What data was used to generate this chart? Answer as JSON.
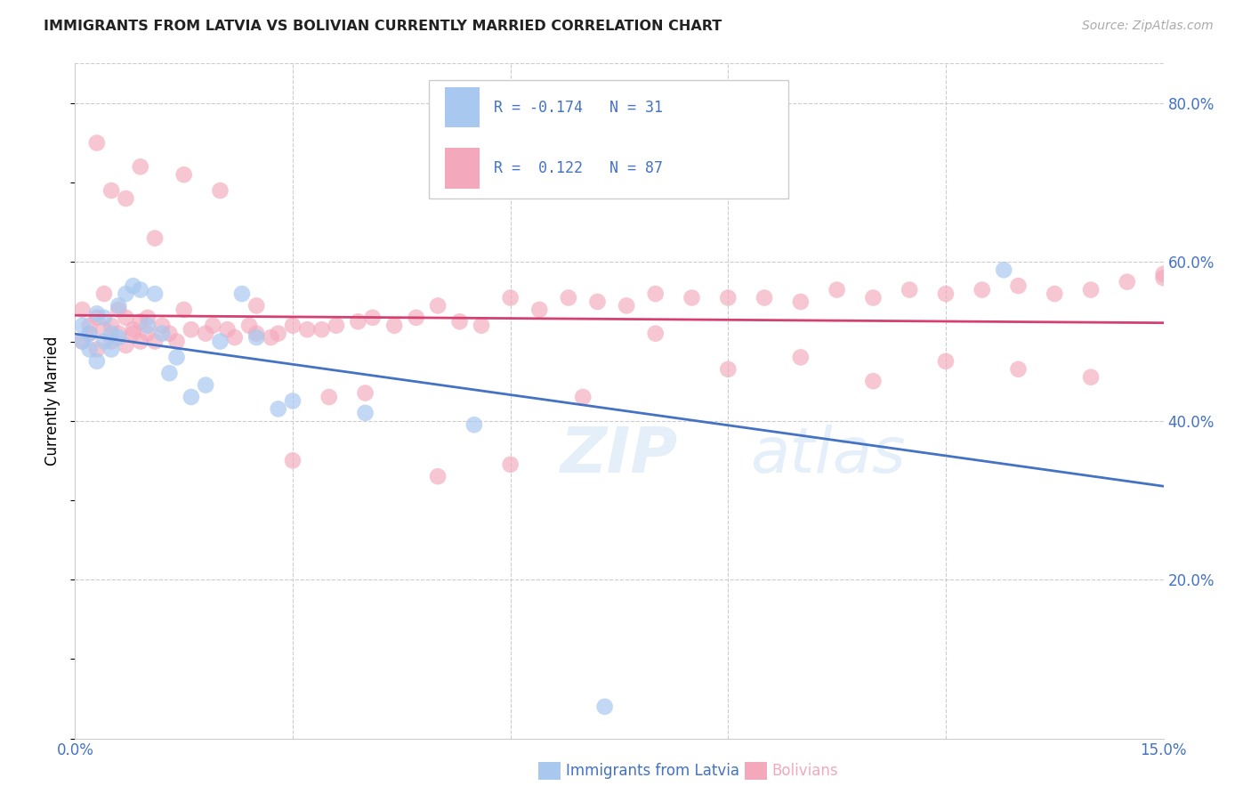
{
  "title": "IMMIGRANTS FROM LATVIA VS BOLIVIAN CURRENTLY MARRIED CORRELATION CHART",
  "source": "Source: ZipAtlas.com",
  "xlabel_latvian": "Immigrants from Latvia",
  "xlabel_bolivian": "Bolivians",
  "ylabel": "Currently Married",
  "xlim": [
    0.0,
    0.15
  ],
  "ylim": [
    0.0,
    0.85
  ],
  "yticks_right": [
    0.2,
    0.4,
    0.6,
    0.8
  ],
  "ytick_labels_right": [
    "20.0%",
    "40.0%",
    "60.0%",
    "80.0%"
  ],
  "legend_r_latvian": "-0.174",
  "legend_n_latvian": "31",
  "legend_r_bolivian": "0.122",
  "legend_n_bolivian": "87",
  "color_latvian": "#a8c8f0",
  "color_bolivian": "#f4a8bc",
  "color_line_latvian": "#4472c4",
  "color_line_bolivian": "#d44070",
  "color_axis_right": "#4472c4",
  "color_axis_bottom": "#4472c4",
  "color_bolivian_label": "#f4a8bc",
  "latvian_x": [
    0.001,
    0.001,
    0.002,
    0.002,
    0.003,
    0.003,
    0.004,
    0.004,
    0.005,
    0.005,
    0.006,
    0.006,
    0.007,
    0.008,
    0.009,
    0.01,
    0.011,
    0.012,
    0.013,
    0.014,
    0.016,
    0.018,
    0.02,
    0.023,
    0.025,
    0.028,
    0.03,
    0.04,
    0.055,
    0.073,
    0.128
  ],
  "latvian_y": [
    0.5,
    0.52,
    0.51,
    0.49,
    0.535,
    0.475,
    0.53,
    0.5,
    0.51,
    0.49,
    0.545,
    0.505,
    0.56,
    0.57,
    0.565,
    0.52,
    0.56,
    0.51,
    0.46,
    0.48,
    0.43,
    0.445,
    0.5,
    0.56,
    0.505,
    0.415,
    0.425,
    0.41,
    0.395,
    0.04,
    0.59
  ],
  "bolivian_x": [
    0.001,
    0.001,
    0.002,
    0.002,
    0.003,
    0.003,
    0.004,
    0.004,
    0.005,
    0.005,
    0.006,
    0.006,
    0.007,
    0.007,
    0.008,
    0.008,
    0.009,
    0.009,
    0.01,
    0.01,
    0.011,
    0.012,
    0.013,
    0.014,
    0.015,
    0.016,
    0.018,
    0.019,
    0.021,
    0.022,
    0.024,
    0.025,
    0.027,
    0.028,
    0.03,
    0.032,
    0.034,
    0.036,
    0.039,
    0.041,
    0.044,
    0.047,
    0.05,
    0.053,
    0.056,
    0.06,
    0.064,
    0.068,
    0.072,
    0.076,
    0.08,
    0.085,
    0.09,
    0.095,
    0.1,
    0.105,
    0.11,
    0.115,
    0.12,
    0.125,
    0.13,
    0.135,
    0.14,
    0.145,
    0.15,
    0.003,
    0.005,
    0.007,
    0.009,
    0.011,
    0.015,
    0.02,
    0.025,
    0.03,
    0.035,
    0.04,
    0.05,
    0.06,
    0.07,
    0.08,
    0.09,
    0.1,
    0.11,
    0.12,
    0.13,
    0.14,
    0.15
  ],
  "bolivian_y": [
    0.5,
    0.54,
    0.51,
    0.52,
    0.49,
    0.53,
    0.515,
    0.56,
    0.5,
    0.52,
    0.54,
    0.51,
    0.53,
    0.495,
    0.515,
    0.51,
    0.5,
    0.525,
    0.51,
    0.53,
    0.5,
    0.52,
    0.51,
    0.5,
    0.54,
    0.515,
    0.51,
    0.52,
    0.515,
    0.505,
    0.52,
    0.51,
    0.505,
    0.51,
    0.52,
    0.515,
    0.515,
    0.52,
    0.525,
    0.53,
    0.52,
    0.53,
    0.545,
    0.525,
    0.52,
    0.555,
    0.54,
    0.555,
    0.55,
    0.545,
    0.56,
    0.555,
    0.555,
    0.555,
    0.55,
    0.565,
    0.555,
    0.565,
    0.56,
    0.565,
    0.57,
    0.56,
    0.565,
    0.575,
    0.58,
    0.75,
    0.69,
    0.68,
    0.72,
    0.63,
    0.71,
    0.69,
    0.545,
    0.35,
    0.43,
    0.435,
    0.33,
    0.345,
    0.43,
    0.51,
    0.465,
    0.48,
    0.45,
    0.475,
    0.465,
    0.455,
    0.585
  ]
}
